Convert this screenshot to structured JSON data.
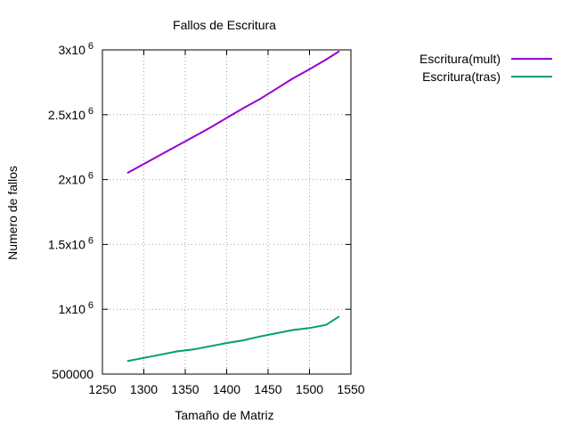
{
  "chart_data": {
    "type": "line",
    "title": "Fallos de Escritura",
    "xlabel": "Tamaño de Matriz",
    "ylabel": "Numero de fallos",
    "xlim": [
      1250,
      1550
    ],
    "ylim": [
      500000,
      3000000
    ],
    "xticks": [
      {
        "value": 1250,
        "label": "1250"
      },
      {
        "value": 1300,
        "label": "1300"
      },
      {
        "value": 1350,
        "label": "1350"
      },
      {
        "value": 1400,
        "label": "1400"
      },
      {
        "value": 1450,
        "label": "1450"
      },
      {
        "value": 1500,
        "label": "1500"
      },
      {
        "value": 1550,
        "label": "1550"
      }
    ],
    "yticks": [
      {
        "value": 500000,
        "mantissa": "500000",
        "exponent": ""
      },
      {
        "value": 1000000,
        "mantissa": "1x10",
        "exponent": "6"
      },
      {
        "value": 1500000,
        "mantissa": "1.5x10",
        "exponent": "6"
      },
      {
        "value": 2000000,
        "mantissa": "2x10",
        "exponent": "6"
      },
      {
        "value": 2500000,
        "mantissa": "2.5x10",
        "exponent": "6"
      },
      {
        "value": 3000000,
        "mantissa": "3x10",
        "exponent": "6"
      }
    ],
    "grid": true,
    "legend_position": "outside-right-top",
    "series": [
      {
        "name": "Escritura(mult)",
        "color": "#9400d3",
        "x": [
          1280,
          1300,
          1320,
          1340,
          1360,
          1380,
          1400,
          1420,
          1440,
          1460,
          1480,
          1500,
          1520,
          1536
        ],
        "y": [
          2050000,
          2120000,
          2190000,
          2260000,
          2330000,
          2400000,
          2475000,
          2550000,
          2620000,
          2700000,
          2780000,
          2850000,
          2925000,
          2990000
        ]
      },
      {
        "name": "Escritura(tras)",
        "color": "#009e73",
        "x": [
          1280,
          1300,
          1320,
          1340,
          1360,
          1380,
          1400,
          1420,
          1440,
          1460,
          1480,
          1500,
          1520,
          1536
        ],
        "y": [
          600000,
          625000,
          650000,
          675000,
          690000,
          715000,
          740000,
          760000,
          790000,
          815000,
          840000,
          855000,
          880000,
          945000
        ]
      }
    ]
  }
}
